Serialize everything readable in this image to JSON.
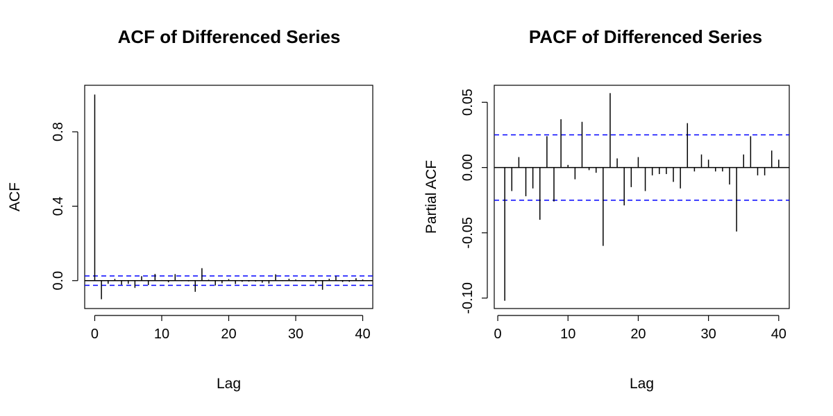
{
  "chart_data": [
    {
      "type": "bar",
      "title": "ACF of Differenced Series",
      "xlabel": "Lag",
      "ylabel": "ACF",
      "xlim": [
        -1.5,
        41.5
      ],
      "ylim": [
        -0.15,
        1.05
      ],
      "xticks": [
        0,
        10,
        20,
        30,
        40
      ],
      "xtick_labels": [
        "0",
        "10",
        "20",
        "30",
        "40"
      ],
      "yticks": [
        0.0,
        0.4,
        0.8
      ],
      "ytick_labels": [
        "0.0",
        "0.4",
        "0.8"
      ],
      "lags": [
        0,
        1,
        2,
        3,
        4,
        5,
        6,
        7,
        8,
        9,
        10,
        11,
        12,
        13,
        14,
        15,
        16,
        17,
        18,
        19,
        20,
        21,
        22,
        23,
        24,
        25,
        26,
        27,
        28,
        29,
        30,
        31,
        32,
        33,
        34,
        35,
        36,
        37,
        38,
        39,
        40
      ],
      "values": [
        1.0,
        -0.1,
        -0.017,
        0.009,
        -0.022,
        -0.017,
        -0.039,
        0.024,
        -0.024,
        0.036,
        0.003,
        -0.009,
        0.035,
        -0.003,
        -0.004,
        -0.06,
        0.067,
        0.005,
        -0.026,
        -0.014,
        0.008,
        -0.018,
        -0.006,
        -0.005,
        -0.005,
        -0.011,
        -0.016,
        0.034,
        -0.003,
        0.01,
        0.006,
        -0.003,
        -0.003,
        -0.013,
        -0.049,
        0.01,
        0.024,
        -0.007,
        -0.006,
        0.013,
        0.006
      ],
      "confidence_bound": 0.025,
      "zero_line": true,
      "colors": {
        "spike": "#000000",
        "bound": "#0000ff",
        "frame": "#000000"
      }
    },
    {
      "type": "bar",
      "title": "PACF of Differenced Series",
      "xlabel": "Lag",
      "ylabel": "Partial ACF",
      "xlim": [
        -0.5,
        41.5
      ],
      "ylim": [
        -0.108,
        0.063
      ],
      "xticks": [
        0,
        10,
        20,
        30,
        40
      ],
      "xtick_labels": [
        "0",
        "10",
        "20",
        "30",
        "40"
      ],
      "yticks": [
        -0.1,
        -0.05,
        0.0,
        0.05
      ],
      "ytick_labels": [
        "-0.10",
        "-0.05",
        "0.00",
        "0.05"
      ],
      "lags": [
        1,
        2,
        3,
        4,
        5,
        6,
        7,
        8,
        9,
        10,
        11,
        12,
        13,
        14,
        15,
        16,
        17,
        18,
        19,
        20,
        21,
        22,
        23,
        24,
        25,
        26,
        27,
        28,
        29,
        30,
        31,
        32,
        33,
        34,
        35,
        36,
        37,
        38,
        39,
        40
      ],
      "values": [
        -0.102,
        -0.018,
        0.008,
        -0.022,
        -0.016,
        -0.04,
        0.024,
        -0.026,
        0.037,
        0.002,
        -0.009,
        0.035,
        -0.002,
        -0.004,
        -0.06,
        0.057,
        0.007,
        -0.029,
        -0.015,
        0.008,
        -0.018,
        -0.006,
        -0.005,
        -0.005,
        -0.011,
        -0.016,
        0.034,
        -0.003,
        0.01,
        0.006,
        -0.003,
        -0.003,
        -0.013,
        -0.049,
        0.01,
        0.024,
        -0.006,
        -0.006,
        0.013,
        0.006
      ],
      "confidence_bound": 0.025,
      "zero_line": true,
      "colors": {
        "spike": "#000000",
        "bound": "#0000ff",
        "frame": "#000000"
      }
    }
  ]
}
